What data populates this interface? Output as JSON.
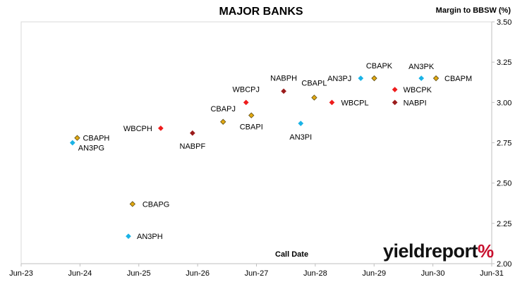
{
  "chart_data": {
    "type": "scatter",
    "title": "MAJOR BANKS",
    "ylabel": "Margin to BBSW (%)",
    "xlabel": "Call Date",
    "ylim": [
      2.0,
      3.5
    ],
    "yticks": [
      "2.00",
      "2.25",
      "2.50",
      "2.75",
      "3.00",
      "3.25",
      "3.50"
    ],
    "xlim": [
      2023.417,
      2031.417
    ],
    "xticks": [
      "Jun-23",
      "Jun-24",
      "Jun-25",
      "Jun-26",
      "Jun-27",
      "Jun-28",
      "Jun-29",
      "Jun-30",
      "Jun-31"
    ],
    "grid": false,
    "series_colors": {
      "CBA": "#e3a912",
      "WBC": "#ee1c1c",
      "NAB": "#9b1b1b",
      "ANZ": "#1ab3e6"
    },
    "points": [
      {
        "label": "CBAPH",
        "date": "2024-05",
        "x": 2024.37,
        "y": 2.78,
        "issuer": "CBA"
      },
      {
        "label": "AN3PG",
        "date": "2024-04",
        "x": 2024.29,
        "y": 2.75,
        "issuer": "ANZ"
      },
      {
        "label": "CBAPG",
        "date": "2025-04",
        "x": 2025.31,
        "y": 2.37,
        "issuer": "CBA"
      },
      {
        "label": "AN3PH",
        "date": "2025-03",
        "x": 2025.24,
        "y": 2.17,
        "issuer": "ANZ"
      },
      {
        "label": "WBCPH",
        "date": "2025-09",
        "x": 2025.79,
        "y": 2.84,
        "issuer": "WBC"
      },
      {
        "label": "NABPF",
        "date": "2026-04",
        "x": 2026.33,
        "y": 2.81,
        "issuer": "NAB"
      },
      {
        "label": "CBAPJ",
        "date": "2026-10",
        "x": 2026.85,
        "y": 2.88,
        "issuer": "CBA"
      },
      {
        "label": "WBCPJ",
        "date": "2027-03",
        "x": 2027.24,
        "y": 3.0,
        "issuer": "WBC"
      },
      {
        "label": "CBAPI",
        "date": "2027-04",
        "x": 2027.33,
        "y": 2.92,
        "issuer": "CBA"
      },
      {
        "label": "NABPH",
        "date": "2027-11",
        "x": 2027.88,
        "y": 3.07,
        "issuer": "NAB"
      },
      {
        "label": "CBAPL",
        "date": "2028-05",
        "x": 2028.4,
        "y": 3.03,
        "issuer": "CBA"
      },
      {
        "label": "AN3PI",
        "date": "2028-03",
        "x": 2028.17,
        "y": 2.87,
        "issuer": "ANZ"
      },
      {
        "label": "WBCPL",
        "date": "2028-09",
        "x": 2028.7,
        "y": 3.0,
        "issuer": "WBC"
      },
      {
        "label": "AN3PJ",
        "date": "2029-03",
        "x": 2029.19,
        "y": 3.15,
        "issuer": "ANZ"
      },
      {
        "label": "CBAPK",
        "date": "2029-06",
        "x": 2029.42,
        "y": 3.15,
        "issuer": "CBA"
      },
      {
        "label": "WBCPK",
        "date": "2029-09",
        "x": 2029.77,
        "y": 3.08,
        "issuer": "WBC"
      },
      {
        "label": "NABPI",
        "date": "2029-09",
        "x": 2029.77,
        "y": 3.0,
        "issuer": "NAB"
      },
      {
        "label": "AN3PK",
        "date": "2030-03",
        "x": 2030.22,
        "y": 3.15,
        "issuer": "ANZ"
      },
      {
        "label": "CBAPM",
        "date": "2030-06",
        "x": 2030.47,
        "y": 3.15,
        "issuer": "CBA"
      }
    ]
  },
  "logo": {
    "text": "yieldreport",
    "symbol": "%"
  }
}
